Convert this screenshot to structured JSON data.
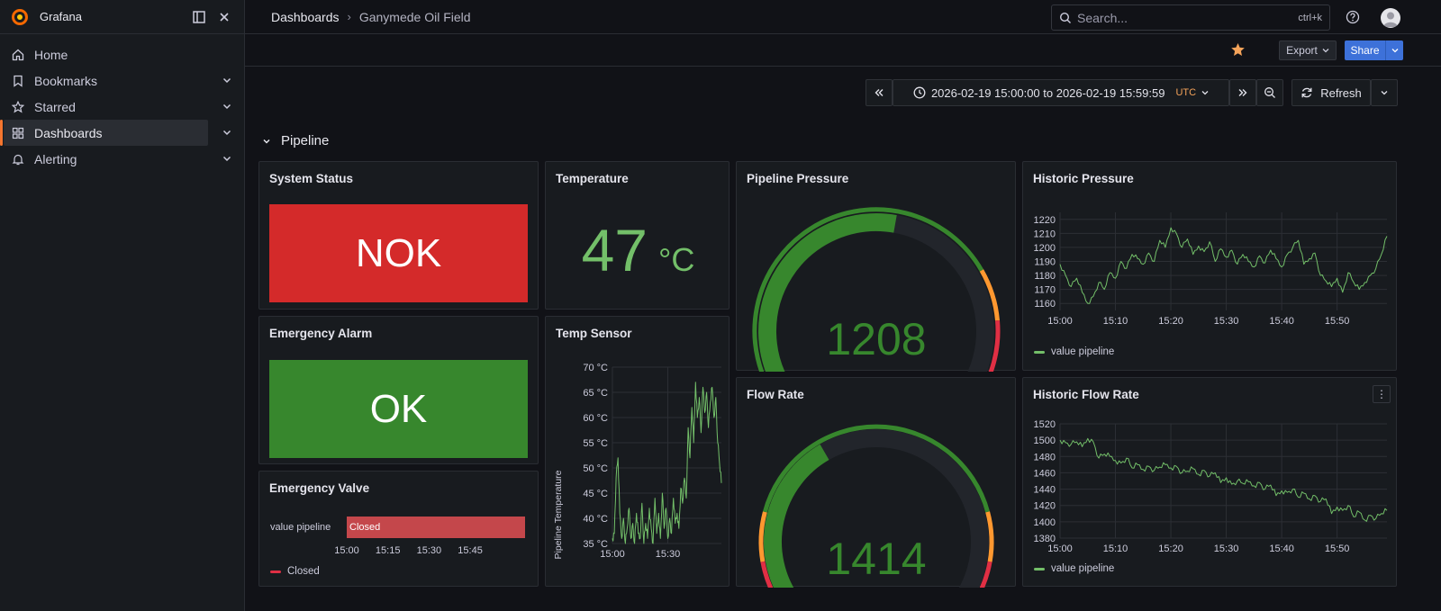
{
  "app": {
    "name": "Grafana"
  },
  "sidebar": {
    "items": [
      {
        "label": "Home",
        "icon": "home-icon",
        "has_children": false,
        "active": false
      },
      {
        "label": "Bookmarks",
        "icon": "bookmark-icon",
        "has_children": true,
        "active": false
      },
      {
        "label": "Starred",
        "icon": "star-icon",
        "has_children": true,
        "active": false
      },
      {
        "label": "Dashboards",
        "icon": "dashboards-icon",
        "has_children": true,
        "active": true
      },
      {
        "label": "Alerting",
        "icon": "bell-icon",
        "has_children": true,
        "active": false
      }
    ]
  },
  "header": {
    "breadcrumb": [
      "Dashboards",
      "Ganymede Oil Field"
    ],
    "search": {
      "placeholder": "Search...",
      "shortcut": "ctrl+k"
    }
  },
  "toolbar": {
    "export_label": "Export",
    "share_label": "Share",
    "starred": true
  },
  "timepicker": {
    "range": "2026-02-19 15:00:00 to 2026-02-19 15:59:59",
    "timezone": "UTC",
    "refresh_label": "Refresh"
  },
  "row": {
    "title": "Pipeline"
  },
  "colors": {
    "accent": "#f5762f",
    "ok_green": "#37872d",
    "nok_red": "#d42a2a",
    "value_green": "#73bf69",
    "gauge_green": "#37872d",
    "gauge_orange": "#ff9830",
    "gauge_red": "#e02f44",
    "line_green": "#73bf69",
    "closed_red": "#c4474b"
  },
  "panels": {
    "system_status": {
      "title": "System Status",
      "value": "NOK"
    },
    "temperature": {
      "title": "Temperature",
      "value": "47",
      "unit": "°C"
    },
    "pipeline_pressure": {
      "title": "Pipeline Pressure",
      "value": "1208",
      "min": 1100,
      "max": 1300
    },
    "emergency_alarm": {
      "title": "Emergency Alarm",
      "value": "OK"
    },
    "temp_sensor": {
      "title": "Temp Sensor",
      "ylabel": "Pipeline Temperature"
    },
    "flow_rate": {
      "title": "Flow Rate",
      "value": "1414",
      "min": 1300,
      "max": 1600
    },
    "emergency_valve": {
      "title": "Emergency Valve",
      "series_label": "value pipeline",
      "state": "Closed",
      "legend": "Closed"
    },
    "historic_pressure": {
      "title": "Historic Pressure",
      "legend": "value pipeline"
    },
    "historic_flow": {
      "title": "Historic Flow Rate",
      "legend": "value pipeline"
    }
  },
  "chart_data": [
    {
      "name": "Temp Sensor",
      "type": "line",
      "ylabel": "Pipeline Temperature",
      "ylim": [
        35,
        70
      ],
      "y_ticks": [
        "35 °C",
        "40 °C",
        "45 °C",
        "50 °C",
        "55 °C",
        "60 °C",
        "65 °C",
        "70 °C"
      ],
      "x_ticks": [
        "15:00",
        "15:30"
      ],
      "x_range_minutes": [
        0,
        59
      ],
      "x": [
        0,
        1,
        2,
        3,
        4,
        5,
        6,
        7,
        8,
        9,
        10,
        11,
        12,
        13,
        14,
        15,
        16,
        17,
        18,
        19,
        20,
        21,
        22,
        23,
        24,
        25,
        26,
        27,
        28,
        29,
        30,
        31,
        32,
        33,
        34,
        35,
        36,
        37,
        38,
        39,
        40,
        41,
        42,
        43,
        44,
        45,
        46,
        47,
        48,
        49,
        50,
        51,
        52,
        53,
        54,
        55,
        56,
        57,
        58,
        59
      ],
      "y": [
        36,
        37,
        48,
        52,
        41,
        36,
        40,
        35,
        38,
        42,
        36,
        39,
        35,
        41,
        37,
        36,
        43,
        35,
        39,
        36,
        42,
        38,
        35,
        44,
        37,
        41,
        36,
        45,
        38,
        42,
        36,
        40,
        37,
        44,
        39,
        41,
        38,
        46,
        43,
        48,
        44,
        58,
        52,
        62,
        55,
        67,
        60,
        64,
        57,
        66,
        61,
        65,
        58,
        63,
        66,
        60,
        64,
        55,
        51,
        47
      ]
    },
    {
      "name": "Historic Pressure",
      "type": "line",
      "ylim": [
        1155,
        1225
      ],
      "y_ticks": [
        1160,
        1170,
        1180,
        1190,
        1200,
        1210,
        1220
      ],
      "x_ticks": [
        "15:00",
        "15:10",
        "15:20",
        "15:30",
        "15:40",
        "15:50"
      ],
      "x_range_minutes": [
        0,
        59
      ],
      "x": [
        0,
        1,
        2,
        3,
        4,
        5,
        6,
        7,
        8,
        9,
        10,
        11,
        12,
        13,
        14,
        15,
        16,
        17,
        18,
        19,
        20,
        21,
        22,
        23,
        24,
        25,
        26,
        27,
        28,
        29,
        30,
        31,
        32,
        33,
        34,
        35,
        36,
        37,
        38,
        39,
        40,
        41,
        42,
        43,
        44,
        45,
        46,
        47,
        48,
        49,
        50,
        51,
        52,
        53,
        54,
        55,
        56,
        57,
        58,
        59
      ],
      "y": [
        1188,
        1180,
        1172,
        1178,
        1168,
        1160,
        1165,
        1175,
        1170,
        1182,
        1178,
        1190,
        1185,
        1195,
        1192,
        1188,
        1196,
        1190,
        1205,
        1200,
        1214,
        1210,
        1200,
        1206,
        1195,
        1201,
        1197,
        1204,
        1190,
        1199,
        1193,
        1198,
        1188,
        1195,
        1190,
        1186,
        1194,
        1189,
        1198,
        1192,
        1186,
        1195,
        1200,
        1205,
        1188,
        1192,
        1196,
        1180,
        1176,
        1172,
        1178,
        1168,
        1182,
        1175,
        1170,
        1175,
        1180,
        1185,
        1195,
        1208
      ]
    },
    {
      "name": "Historic Flow Rate",
      "type": "line",
      "ylim": [
        1380,
        1520
      ],
      "y_ticks": [
        1380,
        1400,
        1420,
        1440,
        1460,
        1480,
        1500,
        1520
      ],
      "x_ticks": [
        "15:00",
        "15:10",
        "15:20",
        "15:30",
        "15:40",
        "15:50"
      ],
      "x_range_minutes": [
        0,
        59
      ],
      "x": [
        0,
        1,
        2,
        3,
        4,
        5,
        6,
        7,
        8,
        9,
        10,
        11,
        12,
        13,
        14,
        15,
        16,
        17,
        18,
        19,
        20,
        21,
        22,
        23,
        24,
        25,
        26,
        27,
        28,
        29,
        30,
        31,
        32,
        33,
        34,
        35,
        36,
        37,
        38,
        39,
        40,
        41,
        42,
        43,
        44,
        45,
        46,
        47,
        48,
        49,
        50,
        51,
        52,
        53,
        54,
        55,
        56,
        57,
        58,
        59
      ],
      "y": [
        1500,
        1497,
        1495,
        1498,
        1492,
        1502,
        1498,
        1478,
        1483,
        1480,
        1475,
        1472,
        1478,
        1466,
        1470,
        1464,
        1468,
        1463,
        1467,
        1470,
        1466,
        1468,
        1460,
        1462,
        1465,
        1458,
        1463,
        1456,
        1460,
        1448,
        1454,
        1446,
        1450,
        1447,
        1449,
        1444,
        1448,
        1440,
        1445,
        1432,
        1438,
        1436,
        1440,
        1430,
        1435,
        1428,
        1432,
        1425,
        1428,
        1410,
        1418,
        1414,
        1420,
        1406,
        1412,
        1402,
        1408,
        1404,
        1410,
        1414
      ]
    },
    {
      "name": "Emergency Valve",
      "type": "bar",
      "categories": [
        "value pipeline"
      ],
      "state": "Closed",
      "x_ticks": [
        "15:00",
        "15:15",
        "15:30",
        "15:45"
      ]
    }
  ]
}
